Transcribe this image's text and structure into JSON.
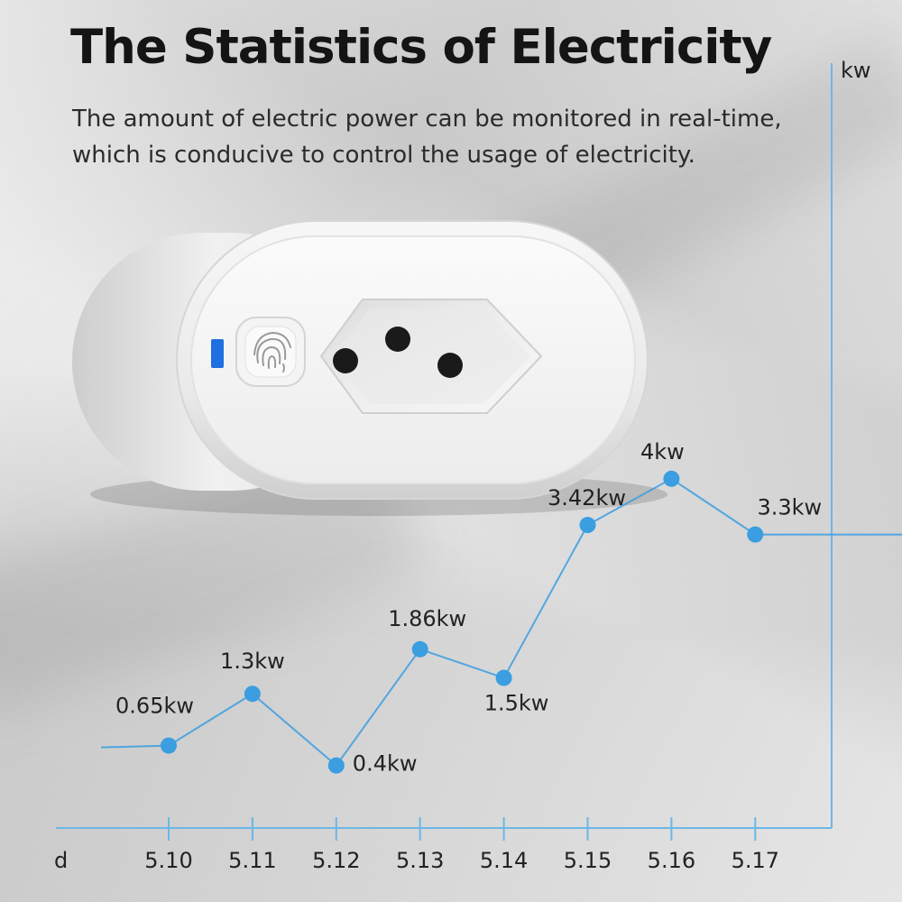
{
  "header": {
    "title": "The Statistics of Electricity",
    "subtitle_line1": "The amount of electric power can be monitored in real-time,",
    "subtitle_line2": "which is conducive to control the usage of electricity."
  },
  "colors": {
    "accent": "#3a9ee0",
    "axis": "#6cb7e6",
    "indicator": "#1e6fe0"
  },
  "product": {
    "icon": "fingerprint-icon"
  },
  "chart_data": {
    "type": "line",
    "xlabel": "d",
    "ylabel": "kw",
    "categories": [
      "5.10",
      "5.11",
      "5.12",
      "5.13",
      "5.14",
      "5.15",
      "5.16",
      "5.17"
    ],
    "values": [
      0.65,
      1.3,
      0.4,
      1.86,
      1.5,
      3.42,
      4,
      3.3
    ],
    "data_labels": [
      "0.65kw",
      "1.3kw",
      "0.4kw",
      "1.86kw",
      "1.5kw",
      "3.42kw",
      "4kw",
      "3.3kw"
    ],
    "grid": false
  }
}
